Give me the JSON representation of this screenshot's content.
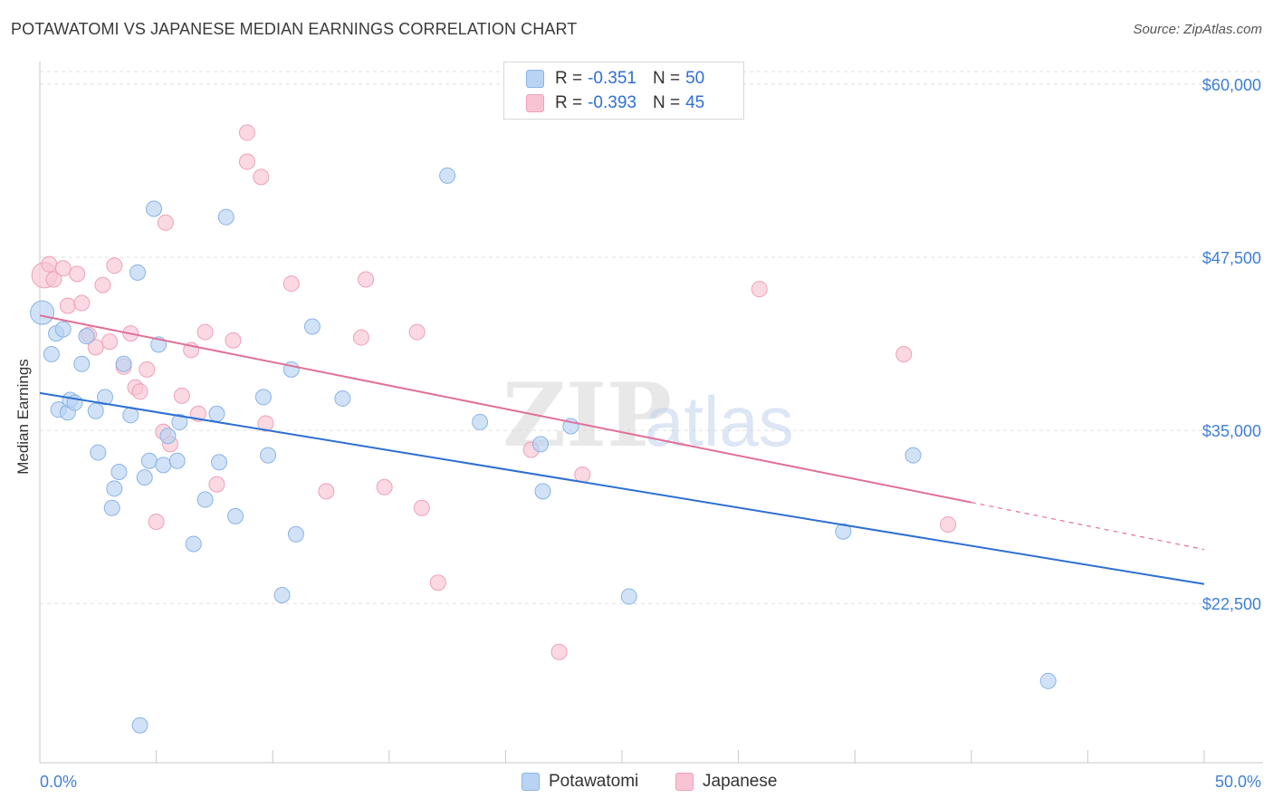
{
  "title": "POTAWATOMI VS JAPANESE MEDIAN EARNINGS CORRELATION CHART",
  "source": "Source: ZipAtlas.com",
  "watermark": {
    "zip": "ZIP",
    "atlas": "atlas"
  },
  "legend": {
    "r_label": "R =",
    "n_label": "N =",
    "series": [
      {
        "name": "Potawatomi",
        "r": "-0.351",
        "n": "50"
      },
      {
        "name": "Japanese",
        "r": "-0.393",
        "n": "45"
      }
    ]
  },
  "colors": {
    "blue_fill": "#b8d3f3",
    "blue_stroke": "#8ab4e6",
    "blue_line": "#2d6fd2",
    "pink_fill": "#f8c4d3",
    "pink_stroke": "#f0a0b8",
    "pink_line": "#e07098",
    "tick_text": "#3f7fd6",
    "grid": "#e0e0e0"
  },
  "chart_data": {
    "type": "scatter",
    "title": "POTAWATOMI VS JAPANESE MEDIAN EARNINGS CORRELATION CHART",
    "xlabel": "",
    "ylabel": "Median Earnings",
    "xlim": [
      0,
      50
    ],
    "ylim": [
      11000,
      61500
    ],
    "x_tick_labels": [
      "0.0%",
      "50.0%"
    ],
    "y_ticks": [
      22500,
      35000,
      47500,
      60000
    ],
    "y_tick_labels": [
      "$22,500",
      "$35,000",
      "$47,500",
      "$60,000"
    ],
    "series": [
      {
        "name": "Potawatomi",
        "points": [
          [
            0.1,
            43500
          ],
          [
            0.5,
            40500
          ],
          [
            0.7,
            42000
          ],
          [
            0.8,
            36500
          ],
          [
            1.0,
            42300
          ],
          [
            1.2,
            36300
          ],
          [
            1.3,
            37200
          ],
          [
            1.5,
            37000
          ],
          [
            1.8,
            39800
          ],
          [
            2.0,
            41800
          ],
          [
            2.4,
            36400
          ],
          [
            2.5,
            33400
          ],
          [
            2.8,
            37400
          ],
          [
            3.1,
            29400
          ],
          [
            3.2,
            30800
          ],
          [
            3.4,
            32000
          ],
          [
            3.6,
            39800
          ],
          [
            3.9,
            36100
          ],
          [
            4.2,
            46400
          ],
          [
            4.3,
            13700
          ],
          [
            4.5,
            31600
          ],
          [
            4.7,
            32800
          ],
          [
            4.9,
            51000
          ],
          [
            5.1,
            41200
          ],
          [
            5.3,
            32500
          ],
          [
            5.5,
            34600
          ],
          [
            5.9,
            32800
          ],
          [
            6.0,
            35600
          ],
          [
            7.1,
            30000
          ],
          [
            6.6,
            26800
          ],
          [
            7.7,
            32700
          ],
          [
            7.6,
            36200
          ],
          [
            8.0,
            50400
          ],
          [
            8.4,
            28800
          ],
          [
            9.6,
            37400
          ],
          [
            9.8,
            33200
          ],
          [
            10.4,
            23100
          ],
          [
            10.8,
            39400
          ],
          [
            11.0,
            27500
          ],
          [
            11.7,
            42500
          ],
          [
            13.0,
            37300
          ],
          [
            17.5,
            53400
          ],
          [
            18.9,
            35600
          ],
          [
            21.5,
            34000
          ],
          [
            21.6,
            30600
          ],
          [
            22.8,
            35300
          ],
          [
            25.3,
            23000
          ],
          [
            34.5,
            27700
          ],
          [
            37.5,
            33200
          ],
          [
            43.3,
            16900
          ]
        ],
        "trend": {
          "x": [
            0,
            50
          ],
          "y": [
            37700,
            23900
          ]
        }
      },
      {
        "name": "Japanese",
        "points": [
          [
            0.2,
            46200
          ],
          [
            0.4,
            47000
          ],
          [
            0.6,
            45900
          ],
          [
            1.0,
            46700
          ],
          [
            1.2,
            44000
          ],
          [
            1.6,
            46300
          ],
          [
            1.8,
            44200
          ],
          [
            2.1,
            41900
          ],
          [
            2.4,
            41000
          ],
          [
            2.7,
            45500
          ],
          [
            3.0,
            41400
          ],
          [
            3.2,
            46900
          ],
          [
            3.6,
            39600
          ],
          [
            3.9,
            42000
          ],
          [
            4.1,
            38100
          ],
          [
            4.3,
            37800
          ],
          [
            4.6,
            39400
          ],
          [
            5.0,
            28400
          ],
          [
            5.3,
            34900
          ],
          [
            5.6,
            34000
          ],
          [
            5.4,
            50000
          ],
          [
            6.1,
            37500
          ],
          [
            6.5,
            40800
          ],
          [
            6.8,
            36200
          ],
          [
            7.1,
            42100
          ],
          [
            7.6,
            31100
          ],
          [
            8.3,
            41500
          ],
          [
            8.9,
            54400
          ],
          [
            8.9,
            56500
          ],
          [
            9.5,
            53300
          ],
          [
            9.7,
            35500
          ],
          [
            10.8,
            45600
          ],
          [
            12.3,
            30600
          ],
          [
            13.8,
            41700
          ],
          [
            14.0,
            45900
          ],
          [
            14.8,
            30900
          ],
          [
            16.2,
            42100
          ],
          [
            16.4,
            29400
          ],
          [
            17.1,
            24000
          ],
          [
            21.1,
            33600
          ],
          [
            22.3,
            19000
          ],
          [
            23.3,
            31800
          ],
          [
            30.9,
            45200
          ],
          [
            37.1,
            40500
          ],
          [
            39.0,
            28200
          ]
        ],
        "trend": {
          "x": [
            0,
            40
          ],
          "y": [
            43300,
            29800
          ]
        },
        "trend_dashed": {
          "x": [
            40,
            50
          ],
          "y": [
            29800,
            26400
          ]
        }
      }
    ]
  }
}
